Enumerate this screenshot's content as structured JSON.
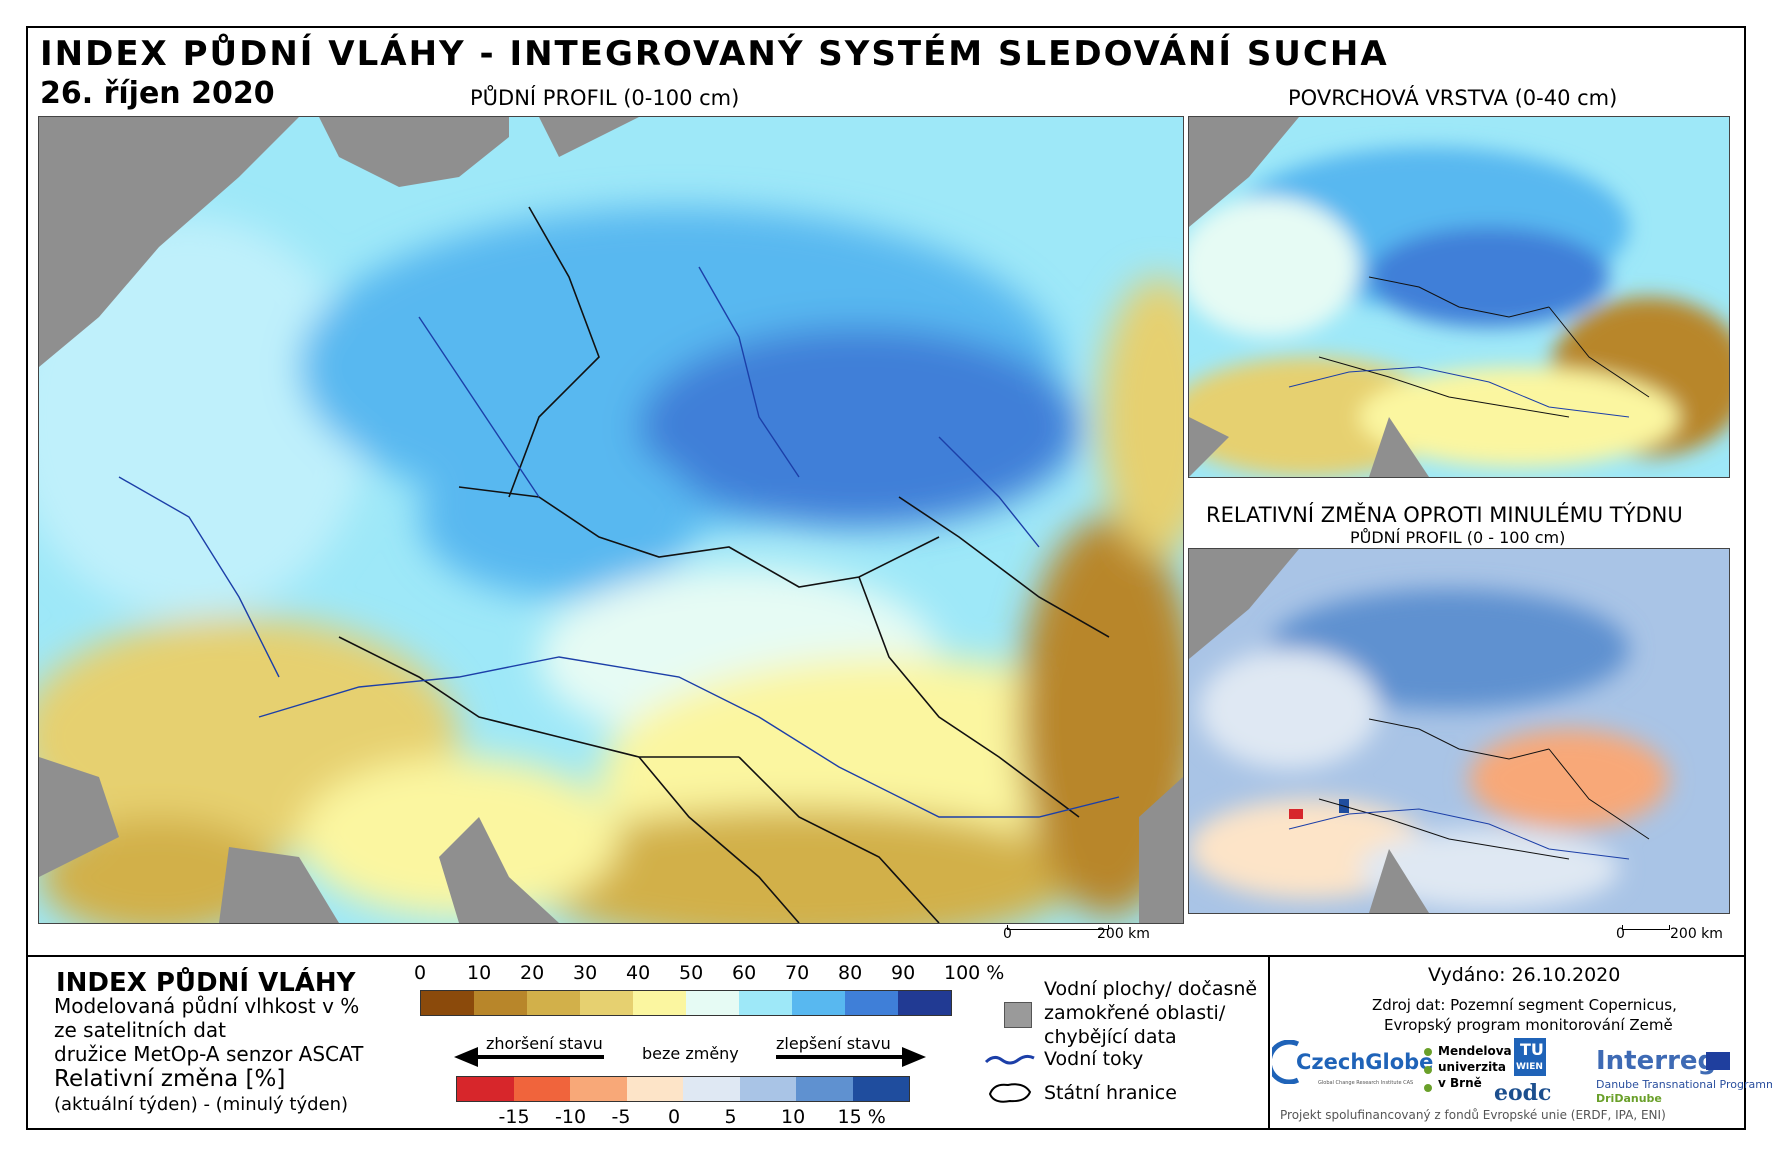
{
  "title": "INDEX PŮDNÍ VLÁHY - INTEGROVANÝ SYSTÉM SLEDOVÁNÍ SUCHA",
  "date": "26. říjen 2020",
  "maps": {
    "main_label": "PŮDNÍ PROFIL (0-100 cm)",
    "surface_label": "POVRCHOVÁ VRSTVA (0-40 cm)",
    "change_label": "RELATIVNÍ ZMĚNA OPROTI MINULÉMU TÝDNU",
    "change_sublabel": "PŮDNÍ PROFIL (0 - 100 cm)",
    "scale_zero": "0",
    "scale_km": "200 km"
  },
  "legend": {
    "title": "INDEX PŮDNÍ VLÁHY",
    "desc1": "Modelovaná půdní vlhkost v %",
    "desc2": "ze satelitních dat",
    "desc3": "družice MetOp-A senzor ASCAT",
    "rel_title": "Relativní změna [%]",
    "rel_desc": "(aktuální týden) - (minulý týden)",
    "moisture_ticks": [
      "0",
      "10",
      "20",
      "30",
      "40",
      "50",
      "60",
      "70",
      "80",
      "90",
      "100 %"
    ],
    "moisture_colors": [
      "#8b4a0b",
      "#b8862a",
      "#d2b04a",
      "#e6d070",
      "#fbf6a0",
      "#e6fbf4",
      "#9ee8f8",
      "#58b8f0",
      "#3f7fd8",
      "#213a93"
    ],
    "worse": "zhoršení stavu",
    "nochange": "beze změny",
    "better": "zlepšení stavu",
    "change_ticks": [
      "-15",
      "-10",
      "-5",
      "0",
      "5",
      "10",
      "15 %"
    ],
    "change_colors": [
      "#d7262b",
      "#f0643c",
      "#f8a878",
      "#fde4c8",
      "#dfe8f3",
      "#a9c4e6",
      "#5f91d0",
      "#1f4d9e"
    ],
    "water_bodies": "Vodní plochy/ dočasně zamokřené oblasti/ chybějící data",
    "water_bodies_l1": "Vodní plochy/ dočasně",
    "water_bodies_l2": "zamokřené oblasti/",
    "water_bodies_l3": "chybějící data",
    "rivers": "Vodní toky",
    "borders": "Státní hranice"
  },
  "footer": {
    "issued": "Vydáno: 26.10.2020",
    "source1": "Zdroj dat: Pozemní segment Copernicus,",
    "source2": "Evropský program monitorování Země",
    "logo_czechglobe": "CzechGlobe",
    "logo_czechglobe_sub": "Global Change Research Institute CAS",
    "logo_mendel1": "Mendelova",
    "logo_mendel2": "univerzita",
    "logo_mendel3": "v Brně",
    "logo_tu": "TU",
    "logo_wien": "WIEN",
    "logo_eodc": "eodc",
    "logo_interreg": "Interreg",
    "logo_interreg_sub1": "Danube Transnational Programme",
    "logo_interreg_sub2": "DriDanube",
    "cofinanced": "Projekt spolufinancovaný z fondů Evropské unie (ERDF, IPA, ENI)"
  }
}
